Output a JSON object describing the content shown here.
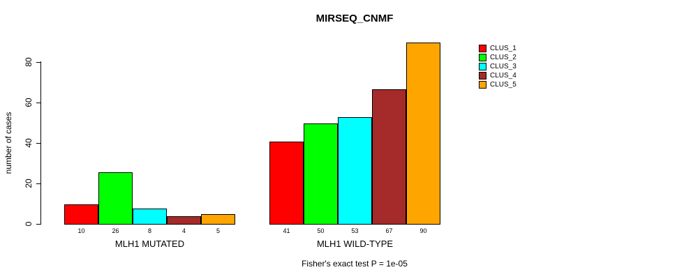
{
  "chart_data": {
    "type": "bar",
    "title": "MIRSEQ_CNMF",
    "ylabel": "number of cases",
    "xlabel": "",
    "annotation": "Fisher's exact test P = 1e-05",
    "ylim": [
      0,
      90
    ],
    "yticks": [
      0,
      20,
      40,
      60,
      80
    ],
    "grid": false,
    "legend_position": "right",
    "bar_border_color": "#000000",
    "categories": [
      "MLH1 MUTATED",
      "MLH1 WILD-TYPE"
    ],
    "series": [
      {
        "name": "CLUS_1",
        "color": "#FF0000",
        "values": [
          10,
          41
        ]
      },
      {
        "name": "CLUS_2",
        "color": "#00FF00",
        "values": [
          26,
          50
        ]
      },
      {
        "name": "CLUS_3",
        "color": "#00FFFF",
        "values": [
          8,
          53
        ]
      },
      {
        "name": "CLUS_4",
        "color": "#A52A2A",
        "values": [
          4,
          67
        ]
      },
      {
        "name": "CLUS_5",
        "color": "#FFA500",
        "values": [
          5,
          90
        ]
      }
    ],
    "bar_value_labels": {
      "MLH1 MUTATED": [
        10,
        26,
        8,
        4,
        5
      ],
      "MLH1 WILD-TYPE": [
        41,
        50,
        53,
        67,
        90
      ]
    }
  },
  "legend": {
    "items": [
      {
        "label": "CLUS_1",
        "color": "#FF0000"
      },
      {
        "label": "CLUS_2",
        "color": "#00FF00"
      },
      {
        "label": "CLUS_3",
        "color": "#00FFFF"
      },
      {
        "label": "CLUS_4",
        "color": "#A52A2A"
      },
      {
        "label": "CLUS_5",
        "color": "#FFA500"
      }
    ]
  }
}
